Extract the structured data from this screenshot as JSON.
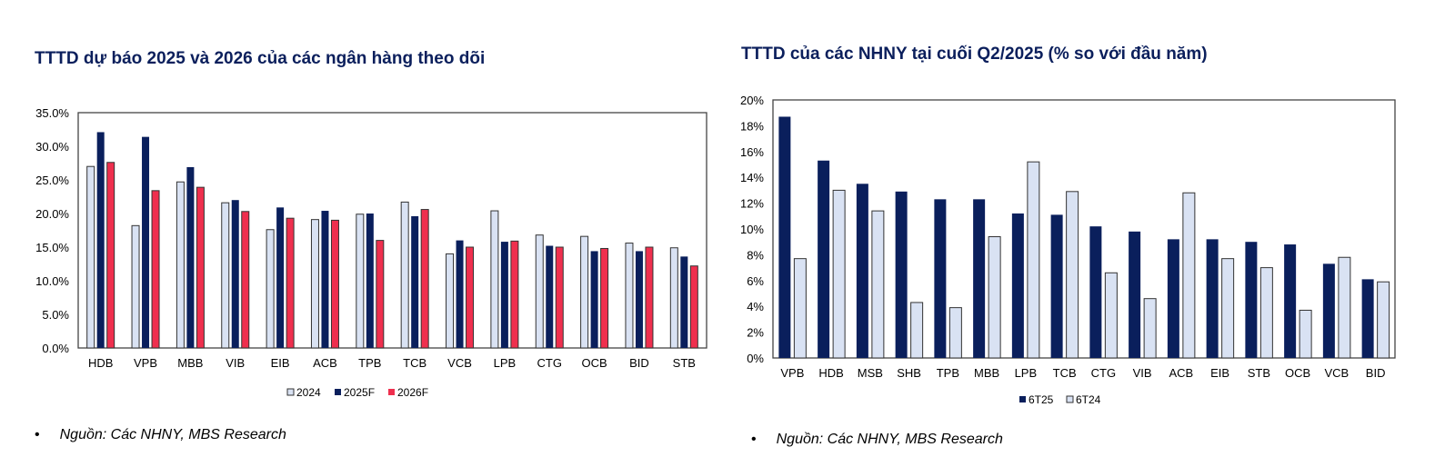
{
  "colors": {
    "c2024": "#d9e2f3",
    "c2025F": "#0a1f5c",
    "c2026F": "#ef2f4e",
    "c6T25": "#0a1f5c",
    "c6T24": "#d9e2f3"
  },
  "chart_data": [
    {
      "type": "bar",
      "title": "TTTD dự báo 2025 và 2026 của các ngân hàng theo dõi",
      "categories": [
        "HDB",
        "VPB",
        "MBB",
        "VIB",
        "EIB",
        "ACB",
        "TPB",
        "TCB",
        "VCB",
        "LPB",
        "CTG",
        "OCB",
        "BID",
        "STB"
      ],
      "series": [
        {
          "name": "2024",
          "values": [
            27.0,
            18.2,
            24.7,
            21.6,
            17.6,
            19.1,
            19.9,
            21.7,
            14.0,
            20.4,
            16.8,
            16.6,
            15.6,
            14.9
          ]
        },
        {
          "name": "2025F",
          "values": [
            32.1,
            31.4,
            26.9,
            22.0,
            20.9,
            20.4,
            20.0,
            19.6,
            16.0,
            15.8,
            15.2,
            14.4,
            14.4,
            13.6
          ]
        },
        {
          "name": "2026F",
          "values": [
            27.6,
            23.4,
            23.9,
            20.3,
            19.3,
            19.0,
            16.0,
            20.6,
            15.0,
            15.9,
            15.0,
            14.8,
            15.0,
            12.2
          ]
        }
      ],
      "yticks": [
        "0.0%",
        "5.0%",
        "10.0%",
        "15.0%",
        "20.0%",
        "25.0%",
        "30.0%",
        "35.0%"
      ],
      "ylim": [
        0,
        35
      ],
      "legend": "bottom",
      "grid": false,
      "source": "Nguồn: Các NHNY, MBS Research"
    },
    {
      "type": "bar",
      "title": "TTTD của các NHNY tại cuối Q2/2025 (% so với đầu năm)",
      "categories": [
        "VPB",
        "HDB",
        "MSB",
        "SHB",
        "TPB",
        "MBB",
        "LPB",
        "TCB",
        "CTG",
        "VIB",
        "ACB",
        "EIB",
        "STB",
        "OCB",
        "VCB",
        "BID"
      ],
      "series": [
        {
          "name": "6T25",
          "values": [
            18.7,
            15.3,
            13.5,
            12.9,
            12.3,
            12.3,
            11.2,
            11.1,
            10.2,
            9.8,
            9.2,
            9.2,
            9.0,
            8.8,
            7.3,
            6.1
          ]
        },
        {
          "name": "6T24",
          "values": [
            7.7,
            13.0,
            11.4,
            4.3,
            3.9,
            9.4,
            15.2,
            12.9,
            6.6,
            4.6,
            12.8,
            7.7,
            7.0,
            3.7,
            7.8,
            5.9
          ]
        }
      ],
      "yticks": [
        "0%",
        "2%",
        "4%",
        "6%",
        "8%",
        "10%",
        "12%",
        "14%",
        "16%",
        "18%",
        "20%"
      ],
      "ylim": [
        0,
        20
      ],
      "legend": "bottom",
      "grid": false,
      "source": "Nguồn: Các NHNY, MBS Research"
    }
  ]
}
